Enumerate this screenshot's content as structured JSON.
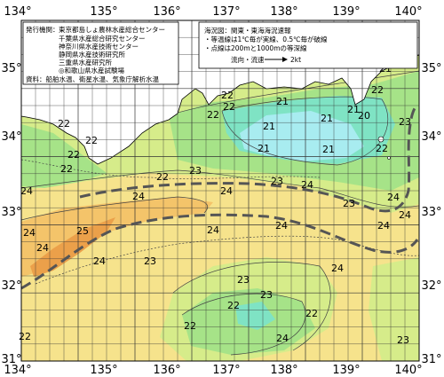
{
  "map": {
    "top_lon_labels": [
      "134°",
      "135°",
      "136°",
      "137°",
      "138°",
      "139°",
      "140°"
    ],
    "bottom_lon_labels": [
      "134°",
      "135°",
      "136°",
      "137°",
      "138°",
      "139°",
      "140°"
    ],
    "left_lat_labels": [
      "35°",
      "34°",
      "33°",
      "32°",
      "31°"
    ],
    "right_lat_labels": [
      "35°",
      "34°",
      "33°",
      "32°",
      "31°"
    ],
    "colors": {
      "land": "#ffffff",
      "sea_cold": "#a8ecf0",
      "sea_21": "#7fe3c4",
      "sea_22": "#a6e388",
      "sea_23": "#d6ec8a",
      "sea_24": "#f6e38c",
      "sea_25": "#f4c46a",
      "sea_warm": "#eba04a",
      "grid": "#333333",
      "kuroshio_axis": "#555555"
    },
    "isotherm_labels": [
      "22",
      "22",
      "22",
      "21",
      "21",
      "21",
      "21",
      "22",
      "21",
      "20",
      "23",
      "22",
      "22",
      "22",
      "21",
      "21",
      "22",
      "22",
      "23",
      "22",
      "23",
      "24",
      "23",
      "24",
      "24",
      "24",
      "24",
      "25",
      "24",
      "24",
      "24",
      "24",
      "23",
      "24",
      "24",
      "24",
      "24",
      "22",
      "23",
      "22",
      "22",
      "23",
      "22",
      "23",
      "24"
    ]
  },
  "publisher": {
    "heading": "発行機関：",
    "orgs": [
      "東京都島しょ農林水産総合センター",
      "千葉県水産総合研究センター",
      "神奈川県水産技術センター",
      "静岡県水産技術研究所",
      "三重県水産研究所",
      "◎和歌山県水産試験場"
    ],
    "source": "資料：船舶水温、衛星水温、気象庁解析水温"
  },
  "legend": {
    "title": "海況図：関東・東海海況速報",
    "line1": "・等温線は1℃毎が実線、0.5℃毎が破線",
    "line2": "・点線は200mと1000mの等深線",
    "flow_label": "流向・流速",
    "flow_value": "2kt"
  }
}
